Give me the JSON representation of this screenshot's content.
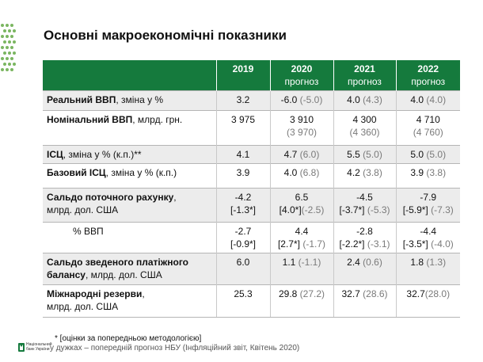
{
  "title": "Основні макроекономічні показники",
  "header": [
    {
      "year": "2019",
      "sub": ""
    },
    {
      "year": "2020",
      "sub": "прогноз"
    },
    {
      "year": "2021",
      "sub": "прогноз"
    },
    {
      "year": "2022",
      "sub": "прогноз"
    }
  ],
  "rows": [
    {
      "bold": "Реальний ВВП",
      "rest": ", зміна у %",
      "c2019": "3.2",
      "c2020": "-6.0",
      "c2020b": " (-5.0)",
      "c2021": "4.0",
      "c2021b": " (4.3)",
      "c2022": "4.0",
      "c2022b": " (4.0)"
    },
    {
      "bold": "Номінальний ВВП",
      "rest": ", млрд. грн.",
      "c2019": "3 975",
      "c2020": "3 910",
      "c2020b": "(3 970)",
      "c2021": "4 300",
      "c2021b": "(4 360)",
      "c2022": "4 710",
      "c2022b": "(4 760)"
    },
    {
      "bold": "ІСЦ",
      "rest": ", зміна у % (к.п.)**",
      "c2019": "4.1",
      "c2020": "4.7",
      "c2020b": " (6.0)",
      "c2021": "5.5",
      "c2021b": " (5.0)",
      "c2022": "5.0",
      "c2022b": " (5.0)"
    },
    {
      "bold": "Базовий ІСЦ",
      "rest": ", зміна у % (к.п.)",
      "c2019": "3.9",
      "c2020": "4.0",
      "c2020b": " (6.8)",
      "c2021": "4.2",
      "c2021b": " (3.8)",
      "c2022": "3.9",
      "c2022b": " (3.8)"
    },
    {
      "bold": "Сальдо поточного рахунку",
      "rest": ",",
      "rest2": "млрд. дол. США",
      "c2019": "-4.2",
      "c2019l2": "[-1.3*]",
      "c2020": "6.5",
      "c2020l2": "[4.0*]",
      "c2020b": "(-2.5)",
      "c2021": "-4.5",
      "c2021l2": "[-3.7*]",
      "c2021b": " (-5.3)",
      "c2022": "-7.9",
      "c2022l2": "[-5.9*]",
      "c2022b": " (-7.3)"
    },
    {
      "label": "% ВВП",
      "c2019": "-2.7",
      "c2019l2": "[-0.9*]",
      "c2020": "4.4",
      "c2020l2": "[2.7*]",
      "c2020b": " (-1.7)",
      "c2021": "-2.8",
      "c2021l2": "[-2.2*]",
      "c2021b": " (-3.1)",
      "c2022": "-4.4",
      "c2022l2": "[-3.5*]",
      "c2022b": " (-4.0)"
    },
    {
      "bold": "Сальдо зведеного платіжного",
      "bold2": "балансу",
      "rest2": ", млрд. дол. США",
      "c2019": "6.0",
      "c2020": "1.1",
      "c2020b": " (-1.1)",
      "c2021": "2.4",
      "c2021b": " (0.6)",
      "c2022": "1.8",
      "c2022b": " (1.3)"
    },
    {
      "bold": "Міжнародні резерви",
      "rest": ",",
      "rest2": "млрд. дол. США",
      "c2019": "25.3",
      "c2020": "29.8",
      "c2020b": " (27.2)",
      "c2021": "32.7",
      "c2021b": " (28.6)",
      "c2022": "32.7",
      "c2022b": "(28.0)"
    }
  ],
  "footnote1": "* [оцінки за попередньою методологією]",
  "footnote2": "у дужках – попередній прогноз НБУ (Інфляційний звіт, Квітень 2020)",
  "logo_line1": "Національний",
  "logo_line2": "банк України",
  "colors": {
    "header": "#157a3d",
    "shade": "#ececec",
    "prev": "#7a7a7a"
  }
}
